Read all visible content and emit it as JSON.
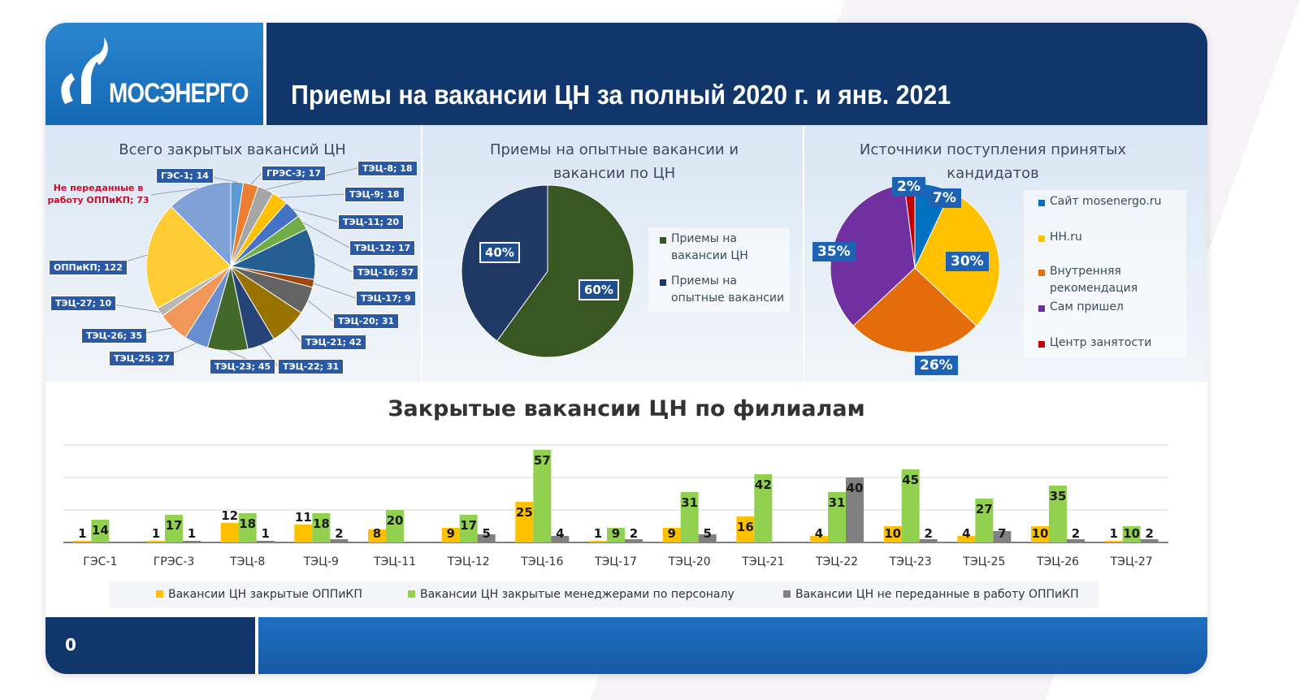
{
  "header": {
    "logo_text": "МОСЭНЕРГО",
    "title": "Приемы на вакансии ЦН за полный 2020 г. и янв. 2021"
  },
  "footer": {
    "page_number": "0"
  },
  "colors": {
    "header_navy": "#11366b",
    "logo_blue": "#1e77c3",
    "bar_orange": "#ffc000",
    "bar_green": "#92d050",
    "bar_gray": "#808080"
  },
  "chart_data": [
    {
      "type": "pie",
      "title": "Всего закрытых вакансий ЦН",
      "categories": [
        "ГЭС-1",
        "ГРЭС-3",
        "ТЭЦ-8",
        "ТЭЦ-9",
        "ТЭЦ-11",
        "ТЭЦ-12",
        "ТЭЦ-16",
        "ТЭЦ-17",
        "ТЭЦ-20",
        "ТЭЦ-21",
        "ТЭЦ-22",
        "ТЭЦ-23",
        "ТЭЦ-25",
        "ТЭЦ-26",
        "ТЭЦ-27",
        "ОППиКП",
        "Не переданные в работу ОППиКП"
      ],
      "values": [
        14,
        17,
        18,
        18,
        20,
        17,
        57,
        9,
        31,
        42,
        31,
        45,
        27,
        35,
        10,
        122,
        73
      ],
      "labels": [
        "ГЭС-1; 14",
        "ГРЭС-3; 17",
        "ТЭЦ-8; 18",
        "ТЭЦ-9; 18",
        "ТЭЦ-11; 20",
        "ТЭЦ-12; 17",
        "ТЭЦ-16; 57",
        "ТЭЦ-17; 9",
        "ТЭЦ-20; 31",
        "ТЭЦ-21; 42",
        "ТЭЦ-22; 31",
        "ТЭЦ-23; 45",
        "ТЭЦ-25; 27",
        "ТЭЦ-26; 35",
        "ТЭЦ-27; 10",
        "ОППиКП; 122",
        "Не переданные в работу ОППиКП; 73"
      ],
      "colors": [
        "#5b9bd5",
        "#ed7d31",
        "#a5a5a5",
        "#ffc000",
        "#4472c4",
        "#70ad47",
        "#255e91",
        "#9e480e",
        "#636363",
        "#997300",
        "#264478",
        "#43682b",
        "#698ed0",
        "#f1975a",
        "#b7b7b7",
        "#ffcd33",
        "#7fa1d8"
      ]
    },
    {
      "type": "pie",
      "title": "Приемы на опытные вакансии и вакансии по ЦН",
      "categories": [
        "Приемы на вакансии ЦН",
        "Приемы на опытные вакансии"
      ],
      "values": [
        60,
        40
      ],
      "labels": [
        "60%",
        "40%"
      ],
      "colors": [
        "#385723",
        "#203864"
      ],
      "legend": "right"
    },
    {
      "type": "pie",
      "title": "Источники поступления принятых кандидатов",
      "categories": [
        "Сайт mosenergo.ru",
        "HH.ru",
        "Внутренняя рекомендация",
        "Сам пришел",
        "Центр занятости"
      ],
      "values": [
        7,
        30,
        26,
        35,
        2
      ],
      "labels": [
        "7%",
        "30%",
        "26%",
        "35%",
        "2%"
      ],
      "colors": [
        "#0070c0",
        "#ffc000",
        "#e46c0a",
        "#7030a0",
        "#c00000"
      ],
      "legend": "right"
    },
    {
      "type": "bar",
      "title": "Закрытые вакансии ЦН по филиалам",
      "categories": [
        "ГЭС-1",
        "ГРЭС-3",
        "ТЭЦ-8",
        "ТЭЦ-9",
        "ТЭЦ-11",
        "ТЭЦ-12",
        "ТЭЦ-16",
        "ТЭЦ-17",
        "ТЭЦ-20",
        "ТЭЦ-21",
        "ТЭЦ-22",
        "ТЭЦ-23",
        "ТЭЦ-25",
        "ТЭЦ-26",
        "ТЭЦ-27"
      ],
      "series": [
        {
          "name": "Вакансии ЦН закрытые ОППиКП",
          "values": [
            1,
            1,
            12,
            11,
            8,
            9,
            25,
            1,
            9,
            16,
            4,
            10,
            4,
            10,
            1
          ],
          "labels": [
            "1",
            "1",
            "12",
            "11",
            "8",
            "9",
            "25",
            "1",
            "9",
            "16",
            "4",
            "10",
            "4",
            "10",
            "1"
          ]
        },
        {
          "name": "Вакансии ЦН закрытые менеджерами по персоналу",
          "values": [
            14,
            17,
            18,
            18,
            20,
            17,
            57,
            9,
            31,
            42,
            31,
            45,
            27,
            35,
            10
          ],
          "labels": [
            "14",
            "17",
            "18",
            "18",
            "20",
            "17",
            "57",
            "9",
            "31",
            "42",
            "31",
            "45",
            "27",
            "35",
            "10"
          ]
        },
        {
          "name": "Вакансии ЦН не переданные в работу ОППиКП",
          "values": [
            0,
            1,
            1,
            2,
            0,
            5,
            4,
            2,
            5,
            0,
            40,
            2,
            7,
            2,
            2
          ],
          "labels": [
            "",
            "1",
            "1",
            "2",
            "",
            "5",
            "4",
            "2",
            "5",
            "",
            "40",
            "2",
            "7",
            "2",
            "2"
          ]
        }
      ],
      "ylim": [
        0,
        60
      ],
      "legend": "bottom"
    }
  ]
}
